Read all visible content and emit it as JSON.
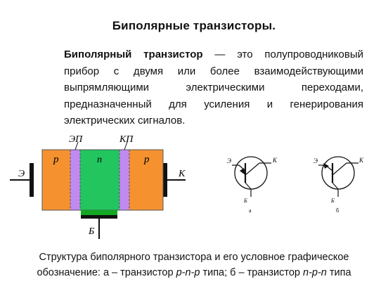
{
  "title": "Биполярные транзисторы.",
  "definition": {
    "term": "Биполярный транзистор",
    "text": " — это полупроводниковый прибор с двумя или более взаимодействующими выпрямляющими электрическими переходами, предназначенный для усиления и генерирования электрических сигналов."
  },
  "structure_labels": {
    "emitter_junction": "ЭП",
    "collector_junction": "КП",
    "left_region": "p",
    "middle_region": "n",
    "right_region": "p",
    "emitter": "Э",
    "collector": "К",
    "base": "Б"
  },
  "symbol_a": {
    "emitter": "Э",
    "collector": "К",
    "base": "Б",
    "label": "а"
  },
  "symbol_b": {
    "emitter": "Э",
    "collector": "К",
    "base": "Б",
    "label": "б"
  },
  "caption": {
    "line1": "Структура биполярного транзистора и его условное графическое",
    "line2_pre": "обозначение: а – транзистор ",
    "pnp": "p-n-p",
    "line2_mid": " типа; б – транзистор ",
    "npn": "n-p-n",
    "line2_post": " типа"
  },
  "colors": {
    "p_region": "#f5922f",
    "n_region": "#22c55e",
    "junction": "#c08af0",
    "base_contact": "#11a822"
  }
}
